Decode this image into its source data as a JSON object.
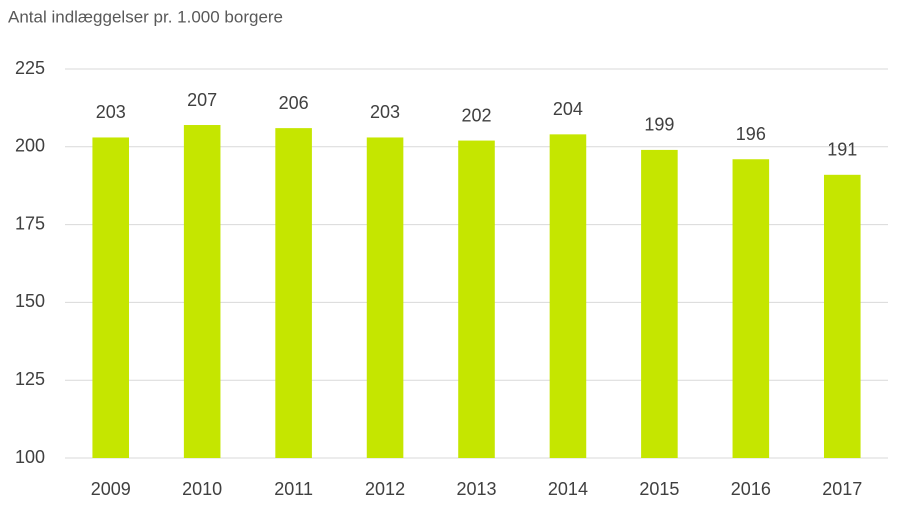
{
  "chart_data": {
    "type": "bar",
    "y_label": "Antal indlæggelser pr. 1.000 borgere",
    "categories": [
      "2009",
      "2010",
      "2011",
      "2012",
      "2013",
      "2014",
      "2015",
      "2016",
      "2017"
    ],
    "values": [
      203,
      207,
      206,
      203,
      202,
      204,
      199,
      196,
      191
    ],
    "color": "#c5e600",
    "ylim": [
      100,
      225
    ],
    "yticks": [
      100,
      125,
      150,
      175,
      200,
      225
    ],
    "grid": true
  }
}
